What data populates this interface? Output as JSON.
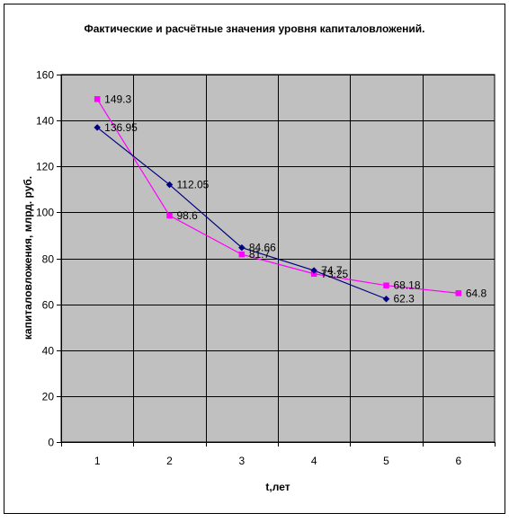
{
  "chart_data": {
    "type": "line",
    "title": "Фактические и расчётные значения уровня капиталовложений.",
    "xlabel": "t,лет",
    "ylabel": "капиталовложения, млрд. руб.",
    "categories": [
      "1",
      "2",
      "3",
      "4",
      "5",
      "6"
    ],
    "ylim": [
      0,
      160
    ],
    "yticks": [
      0,
      20,
      40,
      60,
      80,
      100,
      120,
      140,
      160
    ],
    "grid": true,
    "legend": "none",
    "plot_background": "#c0c0c0",
    "series": [
      {
        "color": "#000080",
        "marker": "diamond",
        "x": [
          1,
          2,
          3,
          4,
          5
        ],
        "values": [
          136.95,
          112.05,
          84.66,
          74.7,
          62.3
        ],
        "labels": [
          "136.95",
          "112.05",
          "84.66",
          "74.7",
          "62.3"
        ]
      },
      {
        "color": "#ff00ff",
        "marker": "square",
        "x": [
          1,
          2,
          3,
          4,
          5,
          6
        ],
        "values": [
          149.3,
          98.6,
          81.7,
          73.25,
          68.18,
          64.8
        ],
        "labels": [
          "149.3",
          "98.6",
          "81.7",
          "73.25",
          "68.18",
          "64.8"
        ]
      }
    ]
  }
}
